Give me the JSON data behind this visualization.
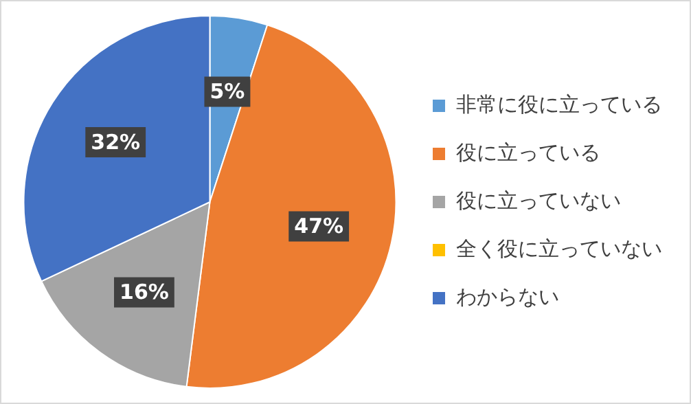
{
  "chart_data": {
    "type": "pie",
    "categories": [
      "非常に役に立っている",
      "役に立っている",
      "役に立っていない",
      "全く役に立っていない",
      "わからない"
    ],
    "values": [
      5,
      47,
      16,
      0,
      32
    ],
    "colors": [
      "#5b9bd5",
      "#ed7d31",
      "#a5a5a5",
      "#ffc000",
      "#4472c4"
    ],
    "value_labels": [
      "5%",
      "47%",
      "16%",
      null,
      "32%"
    ],
    "legend": "right"
  }
}
